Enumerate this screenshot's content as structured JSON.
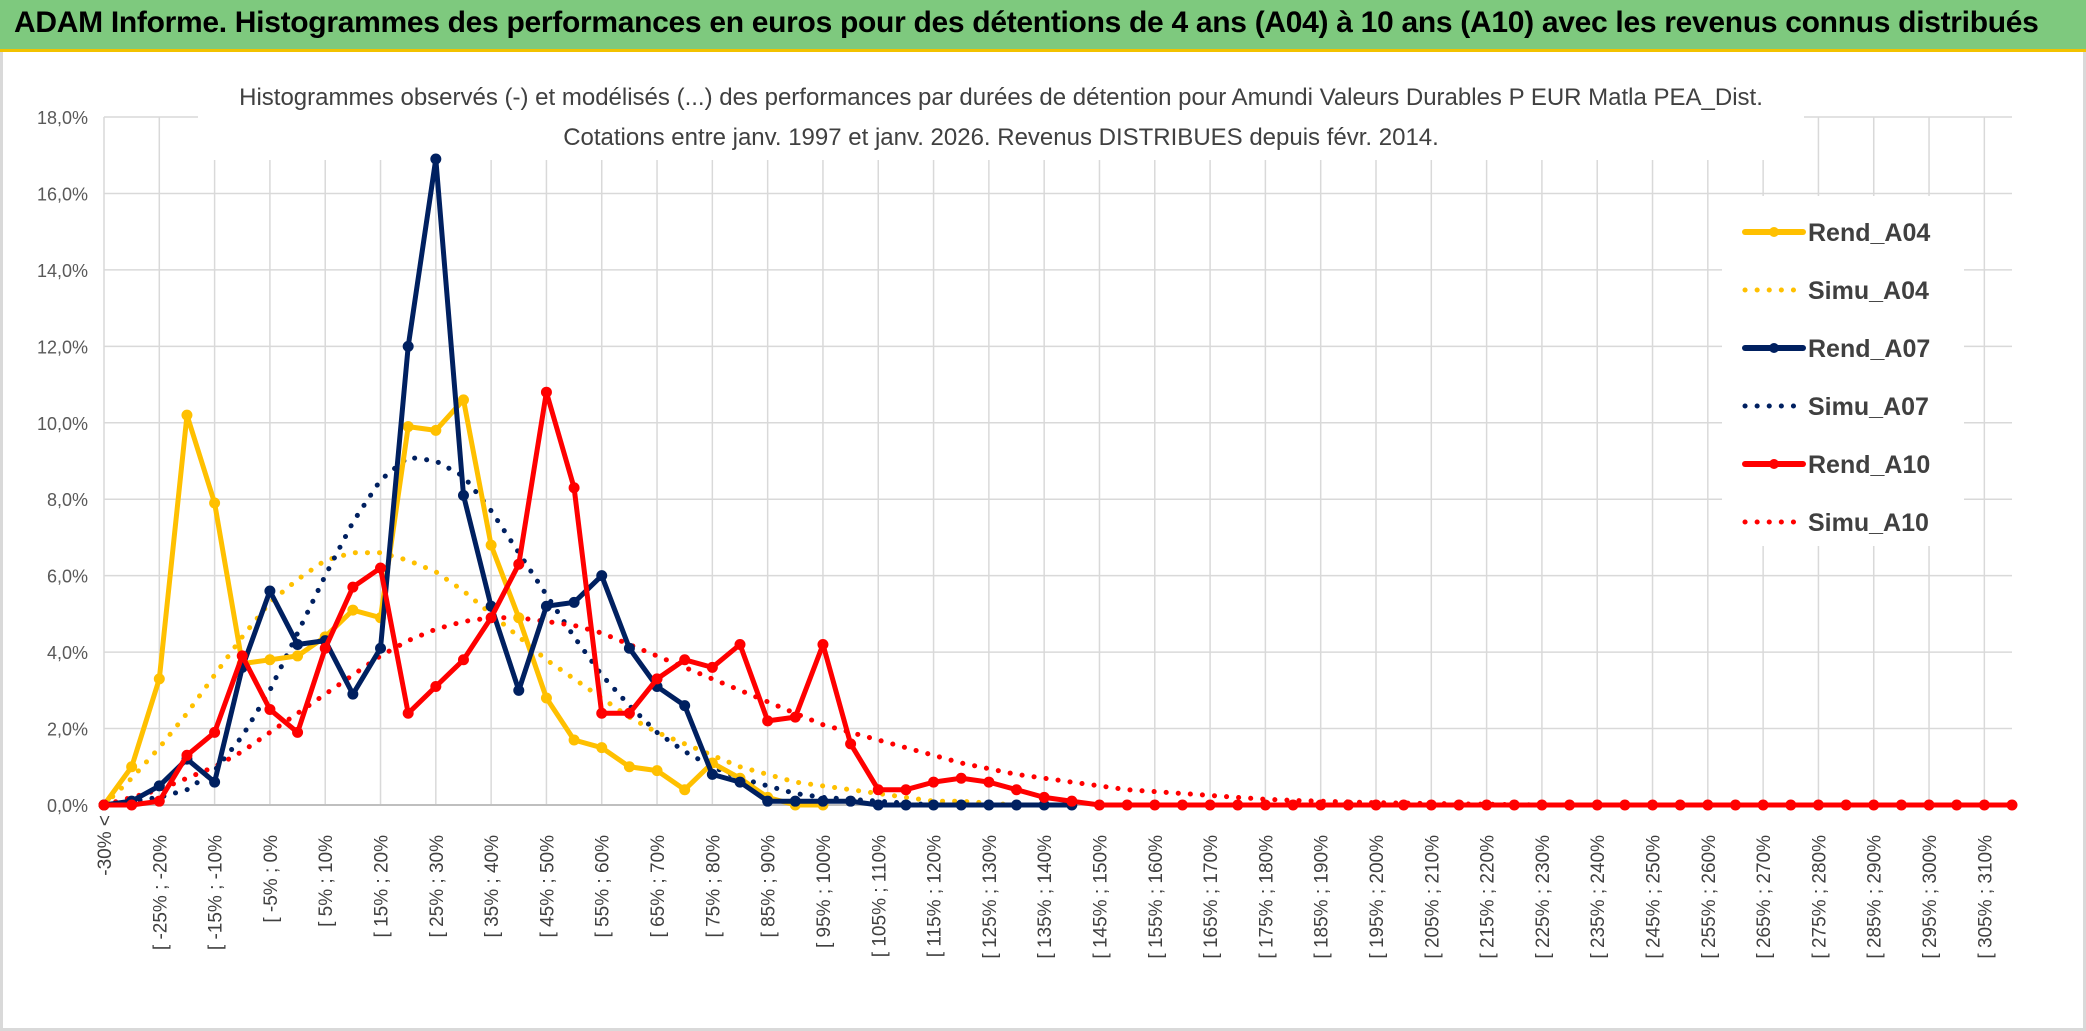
{
  "header": {
    "title": "ADAM Informe. Histogrammes des performances en euros pour des détentions de 4 ans (A04) à 10 ans (A10) avec les revenus connus distribués"
  },
  "chart_data": {
    "type": "line",
    "title": "Histogrammes observés (-) et modélisés (...) des performances par durées de détention pour Amundi Valeurs Durables P EUR Matla PEA_Dist.",
    "subtitle": "Cotations entre janv. 1997 et janv. 2026. Revenus DISTRIBUES depuis févr. 2014.",
    "xlabel": "",
    "ylabel": "",
    "ylim": [
      0,
      18
    ],
    "y_ticks": [
      "0,0%",
      "2,0%",
      "4,0%",
      "6,0%",
      "8,0%",
      "10,0%",
      "12,0%",
      "14,0%",
      "16,0%",
      "18,0%"
    ],
    "y_tick_values": [
      0,
      2,
      4,
      6,
      8,
      10,
      12,
      14,
      16,
      18
    ],
    "x_tick_labels": [
      "-30% <",
      "[ -25% ; -20%",
      "[ -15% ; -10%",
      "[ -5% ; 0%",
      "[ 5% ; 10%",
      "[ 15% ; 20%",
      "[ 25% ; 30%",
      "[ 35% ; 40%",
      "[ 45% ; 50%",
      "[ 55% ; 60%",
      "[ 65% ; 70%",
      "[ 75% ; 80%",
      "[ 85% ; 90%",
      "[ 95% ; 100%",
      "[ 105% ; 110%",
      "[ 115% ; 120%",
      "[ 125% ; 130%",
      "[ 135% ; 140%",
      "[ 145% ; 150%",
      "[ 155% ; 160%",
      "[ 165% ; 170%",
      "[ 175% ; 180%",
      "[ 185% ; 190%",
      "[ 195% ; 200%",
      "[ 205% ; 210%",
      "[ 215% ; 220%",
      "[ 225% ; 230%",
      "[ 235% ; 240%",
      "[ 245% ; 250%",
      "[ 255% ; 260%",
      "[ 265% ; 270%",
      "[ 275% ; 280%",
      "[ 285% ; 290%",
      "[ 295% ; 300%",
      "[ 305% ; 310%"
    ],
    "category_count": 70,
    "grid": true,
    "legend_position": "right",
    "series": [
      {
        "name": "Rend_A04",
        "style": "solid",
        "color": "#ffc000",
        "markers": true,
        "values": [
          0.0,
          1.0,
          3.3,
          10.2,
          7.9,
          3.7,
          3.8,
          3.9,
          4.4,
          5.1,
          4.9,
          9.9,
          9.8,
          10.6,
          6.8,
          4.9,
          2.8,
          1.7,
          1.5,
          1.0,
          0.9,
          0.4,
          1.1,
          0.7,
          0.2,
          0.0,
          0.0
        ]
      },
      {
        "name": "Simu_A04",
        "style": "dotted",
        "color": "#ffc000",
        "markers": false,
        "values": [
          0.0,
          0.7,
          1.5,
          2.4,
          3.4,
          4.4,
          5.3,
          5.9,
          6.4,
          6.6,
          6.6,
          6.4,
          6.1,
          5.6,
          5.0,
          4.4,
          3.8,
          3.3,
          2.8,
          2.3,
          1.9,
          1.6,
          1.3,
          1.0,
          0.8,
          0.6,
          0.5,
          0.4,
          0.3,
          0.2,
          0.1,
          0.1,
          0.05,
          0.0
        ]
      },
      {
        "name": "Rend_A07",
        "style": "solid",
        "color": "#002060",
        "markers": true,
        "values": [
          0.0,
          0.1,
          0.5,
          1.2,
          0.6,
          3.6,
          5.6,
          4.2,
          4.3,
          2.9,
          4.1,
          12.0,
          16.9,
          8.1,
          5.2,
          3.0,
          5.2,
          5.3,
          6.0,
          4.1,
          3.1,
          2.6,
          0.8,
          0.6,
          0.1,
          0.1,
          0.1,
          0.1,
          0.0,
          0.0,
          0.0,
          0.0,
          0.0,
          0.0,
          0.0,
          0.0
        ]
      },
      {
        "name": "Simu_A07",
        "style": "dotted",
        "color": "#002060",
        "markers": false,
        "values": [
          0.0,
          0.1,
          0.2,
          0.4,
          0.9,
          1.8,
          3.0,
          4.5,
          6.0,
          7.4,
          8.5,
          9.1,
          9.0,
          8.6,
          7.7,
          6.6,
          5.5,
          4.4,
          3.4,
          2.6,
          1.9,
          1.4,
          1.0,
          0.7,
          0.5,
          0.3,
          0.2,
          0.15,
          0.1,
          0.05,
          0.0
        ]
      },
      {
        "name": "Rend_A10",
        "style": "solid",
        "color": "#ff0000",
        "markers": true,
        "values": [
          0.0,
          0.0,
          0.1,
          1.3,
          1.9,
          3.9,
          2.5,
          1.9,
          4.1,
          5.7,
          6.2,
          2.4,
          3.1,
          3.8,
          4.9,
          6.3,
          10.8,
          8.3,
          2.4,
          2.4,
          3.3,
          3.8,
          3.6,
          4.2,
          2.2,
          2.3,
          4.2,
          1.6,
          0.4,
          0.4,
          0.6,
          0.7,
          0.6,
          0.4,
          0.2,
          0.1,
          0.0,
          0.0,
          0.0,
          0.0,
          0.0,
          0.0,
          0.0,
          0.0,
          0.0,
          0.0,
          0.0,
          0.0,
          0.0,
          0.0,
          0.0,
          0.0,
          0.0,
          0.0,
          0.0,
          0.0,
          0.0,
          0.0,
          0.0,
          0.0,
          0.0,
          0.0,
          0.0,
          0.0,
          0.0,
          0.0,
          0.0,
          0.0,
          0.0,
          0.0
        ]
      },
      {
        "name": "Simu_A10",
        "style": "dotted",
        "color": "#ff0000",
        "markers": false,
        "values": [
          0.0,
          0.2,
          0.4,
          0.7,
          1.0,
          1.4,
          1.9,
          2.4,
          2.9,
          3.4,
          3.9,
          4.3,
          4.6,
          4.8,
          4.9,
          4.9,
          4.8,
          4.7,
          4.5,
          4.2,
          3.9,
          3.6,
          3.3,
          3.0,
          2.7,
          2.4,
          2.1,
          1.9,
          1.7,
          1.5,
          1.3,
          1.1,
          0.95,
          0.8,
          0.7,
          0.6,
          0.5,
          0.4,
          0.35,
          0.3,
          0.25,
          0.2,
          0.15,
          0.12,
          0.1,
          0.08,
          0.06,
          0.05,
          0.04,
          0.03,
          0.02,
          0.01,
          0.0
        ]
      }
    ]
  }
}
